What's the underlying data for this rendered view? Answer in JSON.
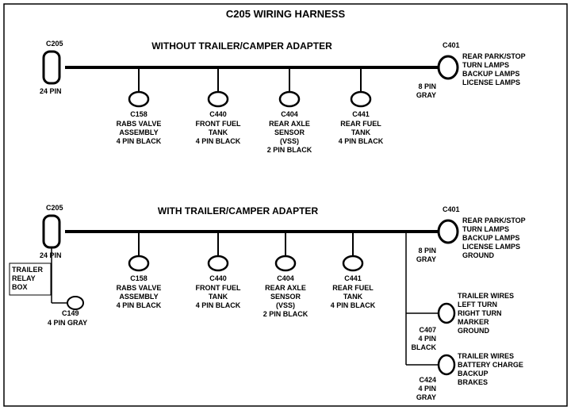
{
  "title": "C205 WIRING HARNESS",
  "colors": {
    "stroke": "#000000",
    "fill_bg": "#ffffff"
  },
  "line_widths": {
    "trunk": 4,
    "drop": 2,
    "thin": 1.5
  },
  "section1": {
    "subtitle": "WITHOUT  TRAILER/CAMPER  ADAPTER",
    "left": {
      "code": "C205",
      "pin": "24 PIN"
    },
    "right": {
      "code": "C401",
      "pin": "8 PIN",
      "color": "GRAY",
      "legend": [
        "REAR PARK/STOP",
        "TURN LAMPS",
        "BACKUP LAMPS",
        "LICENSE LAMPS"
      ]
    },
    "drops": [
      {
        "code": "C158",
        "lines": [
          "RABS VALVE",
          "ASSEMBLY",
          "4 PIN BLACK"
        ]
      },
      {
        "code": "C440",
        "lines": [
          "FRONT FUEL",
          "TANK",
          "4 PIN BLACK"
        ]
      },
      {
        "code": "C404",
        "lines": [
          "REAR AXLE",
          "SENSOR",
          "(VSS)",
          "2 PIN BLACK"
        ]
      },
      {
        "code": "C441",
        "lines": [
          "REAR FUEL",
          "TANK",
          "4 PIN BLACK"
        ]
      }
    ]
  },
  "section2": {
    "subtitle": "WITH TRAILER/CAMPER  ADAPTER",
    "left": {
      "code": "C205",
      "pin": "24 PIN"
    },
    "trailer_relay": {
      "label": [
        "TRAILER",
        "RELAY",
        "BOX"
      ],
      "code": "C149",
      "pin": "4 PIN GRAY"
    },
    "right": {
      "code": "C401",
      "pin": "8 PIN",
      "color": "GRAY",
      "legend": [
        "REAR PARK/STOP",
        "TURN LAMPS",
        "BACKUP LAMPS",
        "LICENSE LAMPS",
        "GROUND"
      ]
    },
    "branch1": {
      "code": "C407",
      "pin": "4 PIN",
      "color": "BLACK",
      "legend": [
        "TRAILER WIRES",
        " LEFT TURN",
        "RIGHT TURN",
        "MARKER",
        "GROUND"
      ]
    },
    "branch2": {
      "code": "C424",
      "pin": "4 PIN",
      "color": "GRAY",
      "legend": [
        "TRAILER  WIRES",
        "BATTERY CHARGE",
        "BACKUP",
        "BRAKES"
      ]
    },
    "drops": [
      {
        "code": "C158",
        "lines": [
          "RABS VALVE",
          "ASSEMBLY",
          "4 PIN BLACK"
        ]
      },
      {
        "code": "C440",
        "lines": [
          "FRONT FUEL",
          "TANK",
          "4 PIN BLACK"
        ]
      },
      {
        "code": "C404",
        "lines": [
          "REAR AXLE",
          "SENSOR",
          "(VSS)",
          "2 PIN BLACK"
        ]
      },
      {
        "code": "C441",
        "lines": [
          "REAR FUEL",
          "TANK",
          "4 PIN BLACK"
        ]
      }
    ]
  }
}
